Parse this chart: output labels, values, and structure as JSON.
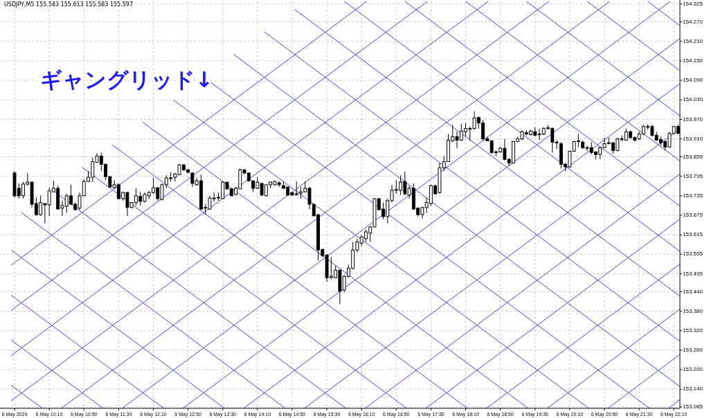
{
  "chart_data": {
    "type": "candlestick",
    "title": "ギャングリッド↓",
    "annotations": [
      "USDJPY,M5  155.583 155.613 155.583 155.597"
    ],
    "color": "#000000",
    "grid": true,
    "xlim": [
      "2024-05-06T09:26",
      "2024-05-06T22:17"
    ],
    "ylim": [
      153.081,
      154.333
    ],
    "xticks": [
      {
        "value": "2024-05-06T09:30",
        "label": "6 May 2024"
      },
      {
        "value": "2024-05-06T10:10",
        "label": "6 May 10:10"
      },
      {
        "value": "2024-05-06T10:50",
        "label": "6 May 10:50"
      },
      {
        "value": "2024-05-06T11:30",
        "label": "6 May 11:30"
      },
      {
        "value": "2024-05-06T12:10",
        "label": "6 May 12:10"
      },
      {
        "value": "2024-05-06T12:50",
        "label": "6 May 12:50"
      },
      {
        "value": "2024-05-06T13:30",
        "label": "6 May 13:30"
      },
      {
        "value": "2024-05-06T14:10",
        "label": "6 May 14:10"
      },
      {
        "value": "2024-05-06T14:50",
        "label": "6 May 14:50"
      },
      {
        "value": "2024-05-06T15:30",
        "label": "6 May 15:30"
      },
      {
        "value": "2024-05-06T16:10",
        "label": "6 May 16:10"
      },
      {
        "value": "2024-05-06T16:50",
        "label": "6 May 16:50"
      },
      {
        "value": "2024-05-06T17:30",
        "label": "6 May 17:30"
      },
      {
        "value": "2024-05-06T18:10",
        "label": "6 May 18:10"
      },
      {
        "value": "2024-05-06T18:50",
        "label": "6 May 18:50"
      },
      {
        "value": "2024-05-06T19:30",
        "label": "6 May 19:30"
      },
      {
        "value": "2024-05-06T20:10",
        "label": "6 May 20:10"
      },
      {
        "value": "2024-05-06T20:50",
        "label": "6 May 20:50"
      },
      {
        "value": "2024-05-06T21:30",
        "label": "6 May 21:30"
      },
      {
        "value": "2024-05-06T22:10",
        "label": "6 May 22:10"
      }
    ],
    "yticks": [
      {
        "value": 154.325,
        "label": "154.325"
      },
      {
        "value": 154.27,
        "label": "154.270"
      },
      {
        "value": 154.21,
        "label": "154.210"
      },
      {
        "value": 154.15,
        "label": "154.150"
      },
      {
        "value": 154.09,
        "label": "154.090"
      },
      {
        "value": 154.03,
        "label": "154.030"
      },
      {
        "value": 153.97,
        "label": "153.970"
      },
      {
        "value": 153.91,
        "label": "153.910"
      },
      {
        "value": 153.855,
        "label": "153.855"
      },
      {
        "value": 153.795,
        "label": "153.795"
      },
      {
        "value": 153.735,
        "label": "153.735"
      },
      {
        "value": 153.675,
        "label": "153.675"
      },
      {
        "value": 153.615,
        "label": "153.615"
      },
      {
        "value": 153.555,
        "label": "153.555"
      },
      {
        "value": 153.495,
        "label": "153.495"
      },
      {
        "value": 153.44,
        "label": "153.440"
      },
      {
        "value": 153.38,
        "label": "153.380"
      },
      {
        "value": 153.32,
        "label": "153.320"
      },
      {
        "value": 153.26,
        "label": "153.260"
      },
      {
        "value": 153.2,
        "label": "153.200"
      },
      {
        "value": 153.14,
        "label": "153.140"
      },
      {
        "value": 153.085,
        "label": "153.085"
      }
    ],
    "x": [
      "2024-05-06T09:30",
      "2024-05-06T09:35",
      "2024-05-06T09:40",
      "2024-05-06T09:45",
      "2024-05-06T09:50",
      "2024-05-06T09:55",
      "2024-05-06T10:00",
      "2024-05-06T10:05",
      "2024-05-06T10:10",
      "2024-05-06T10:15",
      "2024-05-06T10:20",
      "2024-05-06T10:25",
      "2024-05-06T10:30",
      "2024-05-06T10:35",
      "2024-05-06T10:40",
      "2024-05-06T10:45",
      "2024-05-06T10:50",
      "2024-05-06T10:55",
      "2024-05-06T11:00",
      "2024-05-06T11:05",
      "2024-05-06T11:10",
      "2024-05-06T11:15",
      "2024-05-06T11:20",
      "2024-05-06T11:25",
      "2024-05-06T11:30",
      "2024-05-06T11:35",
      "2024-05-06T11:40",
      "2024-05-06T11:45",
      "2024-05-06T11:50",
      "2024-05-06T11:55",
      "2024-05-06T12:00",
      "2024-05-06T12:05",
      "2024-05-06T12:10",
      "2024-05-06T12:15",
      "2024-05-06T12:20",
      "2024-05-06T12:25",
      "2024-05-06T12:30",
      "2024-05-06T12:35",
      "2024-05-06T12:40",
      "2024-05-06T12:45",
      "2024-05-06T12:50",
      "2024-05-06T12:55",
      "2024-05-06T13:00",
      "2024-05-06T13:05",
      "2024-05-06T13:10",
      "2024-05-06T13:15",
      "2024-05-06T13:20",
      "2024-05-06T13:25",
      "2024-05-06T13:30",
      "2024-05-06T13:35",
      "2024-05-06T13:40",
      "2024-05-06T13:45",
      "2024-05-06T13:50",
      "2024-05-06T13:55",
      "2024-05-06T14:00",
      "2024-05-06T14:05",
      "2024-05-06T14:10",
      "2024-05-06T14:15",
      "2024-05-06T14:20",
      "2024-05-06T14:25",
      "2024-05-06T14:30",
      "2024-05-06T14:35",
      "2024-05-06T14:40",
      "2024-05-06T14:45",
      "2024-05-06T14:50",
      "2024-05-06T14:55",
      "2024-05-06T15:00",
      "2024-05-06T15:05",
      "2024-05-06T15:10",
      "2024-05-06T15:15",
      "2024-05-06T15:20",
      "2024-05-06T15:25",
      "2024-05-06T15:30",
      "2024-05-06T15:35",
      "2024-05-06T15:40",
      "2024-05-06T15:45",
      "2024-05-06T15:50",
      "2024-05-06T15:55",
      "2024-05-06T16:00",
      "2024-05-06T16:05",
      "2024-05-06T16:10",
      "2024-05-06T16:15",
      "2024-05-06T16:20",
      "2024-05-06T16:25",
      "2024-05-06T16:30",
      "2024-05-06T16:35",
      "2024-05-06T16:40",
      "2024-05-06T16:45",
      "2024-05-06T16:50",
      "2024-05-06T16:55",
      "2024-05-06T17:00",
      "2024-05-06T17:05",
      "2024-05-06T17:10",
      "2024-05-06T17:15",
      "2024-05-06T17:20",
      "2024-05-06T17:25",
      "2024-05-06T17:30",
      "2024-05-06T17:35",
      "2024-05-06T17:40",
      "2024-05-06T17:45",
      "2024-05-06T17:50",
      "2024-05-06T17:55",
      "2024-05-06T18:00",
      "2024-05-06T18:05",
      "2024-05-06T18:10",
      "2024-05-06T18:15",
      "2024-05-06T18:20",
      "2024-05-06T18:25",
      "2024-05-06T18:30",
      "2024-05-06T18:35",
      "2024-05-06T18:40",
      "2024-05-06T18:45",
      "2024-05-06T18:50",
      "2024-05-06T18:55",
      "2024-05-06T19:00",
      "2024-05-06T19:05",
      "2024-05-06T19:10",
      "2024-05-06T19:15",
      "2024-05-06T19:20",
      "2024-05-06T19:25",
      "2024-05-06T19:30",
      "2024-05-06T19:35",
      "2024-05-06T19:40",
      "2024-05-06T19:45",
      "2024-05-06T19:50",
      "2024-05-06T19:55",
      "2024-05-06T20:00",
      "2024-05-06T20:05",
      "2024-05-06T20:10",
      "2024-05-06T20:15",
      "2024-05-06T20:20",
      "2024-05-06T20:25",
      "2024-05-06T20:30",
      "2024-05-06T20:35",
      "2024-05-06T20:40",
      "2024-05-06T20:45",
      "2024-05-06T20:50",
      "2024-05-06T20:55",
      "2024-05-06T21:00",
      "2024-05-06T21:05",
      "2024-05-06T21:10",
      "2024-05-06T21:15",
      "2024-05-06T21:20",
      "2024-05-06T21:25",
      "2024-05-06T21:30",
      "2024-05-06T21:35",
      "2024-05-06T21:40",
      "2024-05-06T21:45",
      "2024-05-06T21:50",
      "2024-05-06T21:55",
      "2024-05-06T22:00",
      "2024-05-06T22:05",
      "2024-05-06T22:10",
      "2024-05-06T22:15"
    ],
    "ohlc": [
      [
        153.805,
        153.811,
        153.73,
        153.735
      ],
      [
        153.758,
        153.773,
        153.726,
        153.735
      ],
      [
        153.735,
        153.777,
        153.726,
        153.771
      ],
      [
        153.771,
        153.805,
        153.766,
        153.777
      ],
      [
        153.777,
        153.779,
        153.699,
        153.709
      ],
      [
        153.711,
        153.73,
        153.673,
        153.677
      ],
      [
        153.677,
        153.735,
        153.673,
        153.714
      ],
      [
        153.711,
        153.711,
        153.65,
        153.707
      ],
      [
        153.707,
        153.76,
        153.673,
        153.75
      ],
      [
        153.747,
        153.781,
        153.747,
        153.758
      ],
      [
        153.758,
        153.766,
        153.694,
        153.694
      ],
      [
        153.697,
        153.72,
        153.673,
        153.705
      ],
      [
        153.703,
        153.741,
        153.682,
        153.735
      ],
      [
        153.735,
        153.769,
        153.707,
        153.709
      ],
      [
        153.709,
        153.714,
        153.69,
        153.692
      ],
      [
        153.697,
        153.745,
        153.692,
        153.735
      ],
      [
        153.735,
        153.786,
        153.735,
        153.779
      ],
      [
        153.779,
        153.811,
        153.777,
        153.792
      ],
      [
        153.792,
        153.853,
        153.777,
        153.84
      ],
      [
        153.838,
        153.866,
        153.836,
        153.857
      ],
      [
        153.857,
        153.868,
        153.811,
        153.832
      ],
      [
        153.832,
        153.832,
        153.783,
        153.794
      ],
      [
        153.794,
        153.794,
        153.76,
        153.762
      ],
      [
        153.76,
        153.783,
        153.758,
        153.769
      ],
      [
        153.769,
        153.773,
        153.724,
        153.726
      ],
      [
        153.726,
        153.747,
        153.72,
        153.745
      ],
      [
        153.745,
        153.747,
        153.673,
        153.699
      ],
      [
        153.699,
        153.716,
        153.697,
        153.714
      ],
      [
        153.714,
        153.758,
        153.705,
        153.735
      ],
      [
        153.733,
        153.747,
        153.705,
        153.718
      ],
      [
        153.718,
        153.745,
        153.714,
        153.739
      ],
      [
        153.735,
        153.75,
        153.724,
        153.745
      ],
      [
        153.745,
        153.79,
        153.741,
        153.76
      ],
      [
        153.76,
        153.76,
        153.72,
        153.726
      ],
      [
        153.724,
        153.773,
        153.72,
        153.769
      ],
      [
        153.769,
        153.798,
        153.758,
        153.79
      ],
      [
        153.79,
        153.807,
        153.779,
        153.79
      ],
      [
        153.792,
        153.805,
        153.779,
        153.802
      ],
      [
        153.8,
        153.832,
        153.798,
        153.83
      ],
      [
        153.83,
        153.832,
        153.811,
        153.815
      ],
      [
        153.815,
        153.815,
        153.805,
        153.807
      ],
      [
        153.805,
        153.807,
        153.762,
        153.773
      ],
      [
        153.769,
        153.79,
        153.766,
        153.781
      ],
      [
        153.781,
        153.8,
        153.692,
        153.694
      ],
      [
        153.699,
        153.709,
        153.677,
        153.699
      ],
      [
        153.694,
        153.735,
        153.692,
        153.728
      ],
      [
        153.728,
        153.745,
        153.716,
        153.728
      ],
      [
        153.728,
        153.745,
        153.72,
        153.73
      ],
      [
        153.726,
        153.779,
        153.724,
        153.777
      ],
      [
        153.777,
        153.777,
        153.754,
        153.756
      ],
      [
        153.756,
        153.758,
        153.735,
        153.735
      ],
      [
        153.739,
        153.762,
        153.737,
        153.758
      ],
      [
        153.756,
        153.819,
        153.756,
        153.815
      ],
      [
        153.815,
        153.817,
        153.8,
        153.805
      ],
      [
        153.805,
        153.805,
        153.779,
        153.781
      ],
      [
        153.781,
        153.781,
        153.747,
        153.758
      ],
      [
        153.758,
        153.792,
        153.756,
        153.777
      ],
      [
        153.773,
        153.775,
        153.735,
        153.737
      ],
      [
        153.735,
        153.769,
        153.733,
        153.769
      ],
      [
        153.769,
        153.779,
        153.758,
        153.777
      ],
      [
        153.769,
        153.781,
        153.766,
        153.779
      ],
      [
        153.775,
        153.779,
        153.762,
        153.769
      ],
      [
        153.766,
        153.779,
        153.756,
        153.758
      ],
      [
        153.762,
        153.762,
        153.735,
        153.737
      ],
      [
        153.745,
        153.745,
        153.735,
        153.737
      ],
      [
        153.741,
        153.779,
        153.735,
        153.739
      ],
      [
        153.743,
        153.762,
        153.726,
        153.747
      ],
      [
        153.747,
        153.779,
        153.745,
        153.758
      ],
      [
        153.758,
        153.762,
        153.694,
        153.709
      ],
      [
        153.709,
        153.709,
        153.673,
        153.673
      ],
      [
        153.677,
        153.677,
        153.536,
        153.568
      ],
      [
        153.57,
        153.572,
        153.546,
        153.551
      ],
      [
        153.553,
        153.555,
        153.47,
        153.483
      ],
      [
        153.483,
        153.546,
        153.479,
        153.487
      ],
      [
        153.483,
        153.519,
        153.481,
        153.506
      ],
      [
        153.506,
        153.508,
        153.402,
        153.441
      ],
      [
        153.445,
        153.491,
        153.438,
        153.487
      ],
      [
        153.487,
        153.523,
        153.483,
        153.512
      ],
      [
        153.512,
        153.593,
        153.508,
        153.568
      ],
      [
        153.568,
        153.603,
        153.561,
        153.593
      ],
      [
        153.589,
        153.614,
        153.58,
        153.608
      ],
      [
        153.603,
        153.631,
        153.593,
        153.624
      ],
      [
        153.62,
        153.641,
        153.593,
        153.639
      ],
      [
        153.639,
        153.728,
        153.637,
        153.726
      ],
      [
        153.726,
        153.728,
        153.69,
        153.692
      ],
      [
        153.694,
        153.714,
        153.663,
        153.671
      ],
      [
        153.671,
        153.726,
        153.65,
        153.72
      ],
      [
        153.72,
        153.769,
        153.714,
        153.752
      ],
      [
        153.754,
        153.783,
        153.741,
        153.754
      ],
      [
        153.752,
        153.798,
        153.737,
        153.777
      ],
      [
        153.779,
        153.809,
        153.737,
        153.741
      ],
      [
        153.737,
        153.766,
        153.726,
        153.758
      ],
      [
        153.758,
        153.773,
        153.692,
        153.694
      ],
      [
        153.697,
        153.699,
        153.671,
        153.677
      ],
      [
        153.677,
        153.701,
        153.665,
        153.699
      ],
      [
        153.699,
        153.73,
        153.682,
        153.714
      ],
      [
        153.711,
        153.769,
        153.705,
        153.766
      ],
      [
        153.766,
        153.769,
        153.739,
        153.741
      ],
      [
        153.745,
        153.836,
        153.741,
        153.821
      ],
      [
        153.821,
        153.857,
        153.811,
        153.84
      ],
      [
        153.84,
        153.925,
        153.84,
        153.906
      ],
      [
        153.904,
        153.953,
        153.9,
        153.917
      ],
      [
        153.917,
        153.932,
        153.881,
        153.906
      ],
      [
        153.906,
        153.957,
        153.904,
        153.934
      ],
      [
        153.932,
        153.959,
        153.917,
        153.942
      ],
      [
        153.942,
        153.948,
        153.904,
        153.942
      ],
      [
        153.942,
        153.995,
        153.938,
        153.974
      ],
      [
        153.976,
        153.978,
        153.942,
        153.959
      ],
      [
        153.959,
        153.968,
        153.904,
        153.91
      ],
      [
        153.91,
        153.917,
        153.904,
        153.904
      ],
      [
        153.904,
        153.906,
        153.864,
        153.868
      ],
      [
        153.87,
        153.874,
        153.857,
        153.87
      ],
      [
        153.87,
        153.885,
        153.868,
        153.881
      ],
      [
        153.881,
        153.91,
        153.843,
        153.847
      ],
      [
        153.847,
        153.851,
        153.826,
        153.836
      ],
      [
        153.836,
        153.904,
        153.834,
        153.902
      ],
      [
        153.902,
        153.917,
        153.9,
        153.91
      ],
      [
        153.91,
        153.936,
        153.906,
        153.932
      ],
      [
        153.929,
        153.936,
        153.921,
        153.925
      ],
      [
        153.923,
        153.938,
        153.921,
        153.934
      ],
      [
        153.932,
        153.946,
        153.917,
        153.921
      ],
      [
        153.925,
        153.942,
        153.906,
        153.925
      ],
      [
        153.925,
        153.946,
        153.921,
        153.942
      ],
      [
        153.944,
        153.953,
        153.938,
        153.944
      ],
      [
        153.942,
        153.946,
        153.868,
        153.9
      ],
      [
        153.9,
        153.906,
        153.879,
        153.898
      ],
      [
        153.895,
        153.9,
        153.819,
        153.832
      ],
      [
        153.832,
        153.836,
        153.811,
        153.824
      ],
      [
        153.824,
        153.874,
        153.821,
        153.872
      ],
      [
        153.872,
        153.904,
        153.87,
        153.902
      ],
      [
        153.902,
        153.925,
        153.885,
        153.904
      ],
      [
        153.9,
        153.904,
        153.879,
        153.883
      ],
      [
        153.883,
        153.889,
        153.872,
        153.883
      ],
      [
        153.883,
        153.9,
        153.862,
        153.868
      ],
      [
        153.87,
        153.872,
        153.847,
        153.862
      ],
      [
        153.862,
        153.885,
        153.847,
        153.883
      ],
      [
        153.883,
        153.914,
        153.883,
        153.895
      ],
      [
        153.898,
        153.914,
        153.893,
        153.898
      ],
      [
        153.898,
        153.9,
        153.864,
        153.874
      ],
      [
        153.874,
        153.914,
        153.872,
        153.91
      ],
      [
        153.91,
        153.921,
        153.902,
        153.91
      ],
      [
        153.906,
        153.942,
        153.904,
        153.932
      ],
      [
        153.932,
        153.936,
        153.91,
        153.914
      ],
      [
        153.914,
        153.917,
        153.902,
        153.906
      ],
      [
        153.91,
        153.932,
        153.906,
        153.925
      ],
      [
        153.925,
        153.953,
        153.921,
        153.948
      ],
      [
        153.948,
        153.955,
        153.938,
        153.948
      ],
      [
        153.948,
        153.953,
        153.917,
        153.921
      ],
      [
        153.921,
        153.932,
        153.904,
        153.906
      ],
      [
        153.908,
        153.917,
        153.889,
        153.898
      ],
      [
        153.902,
        153.904,
        153.874,
        153.885
      ],
      [
        153.885,
        153.932,
        153.883,
        153.927
      ],
      [
        153.927,
        153.95,
        153.925,
        153.948
      ],
      [
        153.948,
        153.953,
        153.925,
        153.927
      ]
    ],
    "series": [
      {
        "type": "line",
        "color": "#4646d2",
        "x": [
          "2024-05-06T09:26",
          "2024-05-06T16:16"
        ],
        "values": [
          153.521,
          154.333
        ]
      },
      {
        "type": "line",
        "color": "#4646d2",
        "x": [
          "2024-05-06T09:26",
          "2024-05-06T17:26"
        ],
        "values": [
          153.382,
          154.333
        ]
      },
      {
        "type": "line",
        "color": "#4646d2",
        "x": [
          "2024-05-06T09:26",
          "2024-05-06T18:36"
        ],
        "values": [
          153.243,
          154.333
        ]
      },
      {
        "type": "line",
        "color": "#4646d2",
        "x": [
          "2024-05-06T09:26",
          "2024-05-06T19:46"
        ],
        "values": [
          153.104,
          154.333
        ]
      },
      {
        "type": "line",
        "color": "#4646d2",
        "x": [
          "2024-05-06T10:24",
          "2024-05-06T20:56"
        ],
        "values": [
          153.081,
          154.333
        ]
      },
      {
        "type": "line",
        "color": "#4646d2",
        "x": [
          "2024-05-06T11:34",
          "2024-05-06T22:06"
        ],
        "values": [
          153.081,
          154.333
        ]
      },
      {
        "type": "line",
        "color": "#4646d2",
        "x": [
          "2024-05-06T12:44",
          "2024-05-06T22:17"
        ],
        "values": [
          153.081,
          154.219
        ]
      },
      {
        "type": "line",
        "color": "#4646d2",
        "x": [
          "2024-05-06T13:54",
          "2024-05-06T22:17"
        ],
        "values": [
          153.081,
          154.08
        ]
      },
      {
        "type": "line",
        "color": "#4646d2",
        "x": [
          "2024-05-06T15:04",
          "2024-05-06T22:17"
        ],
        "values": [
          153.081,
          153.941
        ]
      },
      {
        "type": "line",
        "color": "#4646d2",
        "x": [
          "2024-05-06T16:14",
          "2024-05-06T22:17"
        ],
        "values": [
          153.081,
          153.802
        ]
      },
      {
        "type": "line",
        "color": "#4646d2",
        "x": [
          "2024-05-06T17:24",
          "2024-05-06T22:17"
        ],
        "values": [
          153.081,
          153.663
        ]
      },
      {
        "type": "line",
        "color": "#4646d2",
        "x": [
          "2024-05-06T18:34",
          "2024-05-06T22:17"
        ],
        "values": [
          153.081,
          153.525
        ]
      },
      {
        "type": "line",
        "color": "#4646d2",
        "x": [
          "2024-05-06T19:44",
          "2024-05-06T22:17"
        ],
        "values": [
          153.081,
          153.386
        ]
      },
      {
        "type": "line",
        "color": "#4646d2",
        "x": [
          "2024-05-06T20:54",
          "2024-05-06T22:17"
        ],
        "values": [
          153.081,
          153.247
        ]
      },
      {
        "type": "line",
        "color": "#4646d2",
        "x": [
          "2024-05-06T22:04",
          "2024-05-06T22:17"
        ],
        "values": [
          153.081,
          153.108
        ]
      },
      {
        "type": "line",
        "color": "#4646d2",
        "x": [
          "2024-05-06T21:40",
          "2024-05-06T22:17"
        ],
        "values": [
          154.333,
          154.258
        ]
      },
      {
        "type": "line",
        "color": "#4646d2",
        "x": [
          "2024-05-06T20:30",
          "2024-05-06T22:17"
        ],
        "values": [
          154.333,
          154.12
        ]
      },
      {
        "type": "line",
        "color": "#4646d2",
        "x": [
          "2024-05-06T19:20",
          "2024-05-06T22:17"
        ],
        "values": [
          154.333,
          153.981
        ]
      },
      {
        "type": "line",
        "color": "#4646d2",
        "x": [
          "2024-05-06T18:10",
          "2024-05-06T22:17"
        ],
        "values": [
          154.333,
          153.842
        ]
      },
      {
        "type": "line",
        "color": "#4646d2",
        "x": [
          "2024-05-06T17:00",
          "2024-05-06T22:17"
        ],
        "values": [
          154.333,
          153.703
        ]
      },
      {
        "type": "line",
        "color": "#4646d2",
        "x": [
          "2024-05-06T15:50",
          "2024-05-06T22:17"
        ],
        "values": [
          154.333,
          153.564
        ]
      },
      {
        "type": "line",
        "color": "#4646d2",
        "x": [
          "2024-05-06T14:53",
          "2024-05-06T22:17"
        ],
        "values": [
          154.308,
          153.426
        ]
      },
      {
        "type": "line",
        "color": "#4646d2",
        "x": [
          "2024-05-06T14:18",
          "2024-05-06T22:17"
        ],
        "values": [
          154.239,
          153.287
        ]
      },
      {
        "type": "line",
        "color": "#4646d2",
        "x": [
          "2024-05-06T13:43",
          "2024-05-06T22:17"
        ],
        "values": [
          154.169,
          153.148
        ]
      },
      {
        "type": "line",
        "color": "#4646d2",
        "x": [
          "2024-05-06T13:08",
          "2024-05-06T21:42"
        ],
        "values": [
          154.1,
          153.081
        ]
      },
      {
        "type": "line",
        "color": "#4646d2",
        "x": [
          "2024-05-06T12:33",
          "2024-05-06T20:32"
        ],
        "values": [
          154.03,
          153.081
        ]
      },
      {
        "type": "line",
        "color": "#4646d2",
        "x": [
          "2024-05-06T11:58",
          "2024-05-06T19:22"
        ],
        "values": [
          153.961,
          153.081
        ]
      },
      {
        "type": "line",
        "color": "#4646d2",
        "x": [
          "2024-05-06T11:23",
          "2024-05-06T18:12"
        ],
        "values": [
          153.891,
          153.081
        ]
      },
      {
        "type": "line",
        "color": "#4646d2",
        "x": [
          "2024-05-06T10:48",
          "2024-05-06T17:02"
        ],
        "values": [
          153.822,
          153.081
        ]
      },
      {
        "type": "line",
        "color": "#4646d2",
        "x": [
          "2024-05-06T10:13",
          "2024-05-06T15:52"
        ],
        "values": [
          153.753,
          153.081
        ]
      },
      {
        "type": "line",
        "color": "#4646d2",
        "x": [
          "2024-05-06T09:38",
          "2024-05-06T14:42"
        ],
        "values": [
          153.683,
          153.081
        ]
      },
      {
        "type": "line",
        "color": "#4646d2",
        "x": [
          "2024-05-06T09:26",
          "2024-05-06T13:32"
        ],
        "values": [
          153.568,
          153.081
        ]
      },
      {
        "type": "line",
        "color": "#4646d2",
        "x": [
          "2024-05-06T09:26",
          "2024-05-06T12:22"
        ],
        "values": [
          153.429,
          153.081
        ]
      },
      {
        "type": "line",
        "color": "#4646d2",
        "x": [
          "2024-05-06T09:26",
          "2024-05-06T11:12"
        ],
        "values": [
          153.291,
          153.081
        ]
      },
      {
        "type": "line",
        "color": "#4646d2",
        "x": [
          "2024-05-06T09:26",
          "2024-05-06T10:02"
        ],
        "values": [
          153.152,
          153.081
        ]
      }
    ]
  }
}
